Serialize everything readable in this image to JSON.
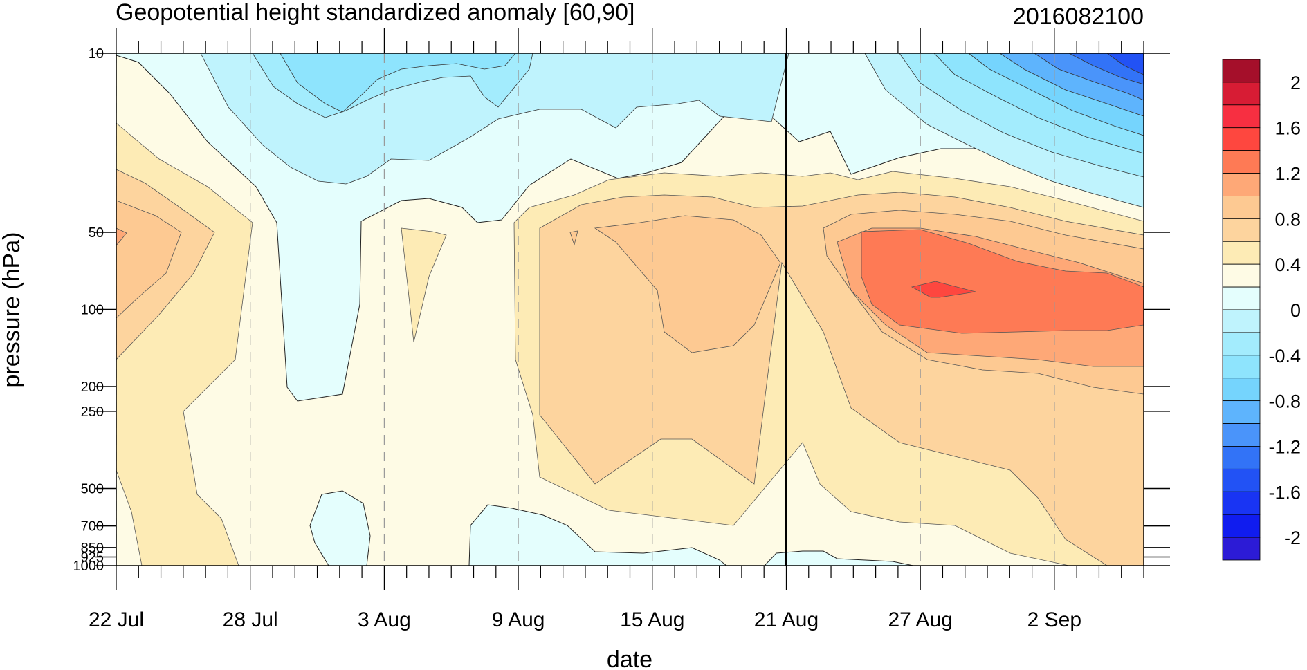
{
  "chart_data": {
    "type": "heatmap",
    "title": "Geopotential height standardized anomaly [60,90]",
    "subtitle": "2016082100",
    "xlabel": "date",
    "ylabel": "pressure (hPa)",
    "x_ticks": [
      "22 Jul",
      "28 Jul",
      "3 Aug",
      "9 Aug",
      "15 Aug",
      "21 Aug",
      "27 Aug",
      "2 Sep"
    ],
    "x_tick_dates": [
      "2016-07-22",
      "2016-07-28",
      "2016-08-03",
      "2016-08-09",
      "2016-08-15",
      "2016-08-21",
      "2016-08-27",
      "2016-09-02"
    ],
    "x_range": [
      "2016-07-22",
      "2016-09-06"
    ],
    "y_scale": "log",
    "y_range": [
      1000,
      10
    ],
    "y_levels": [
      10,
      50,
      100,
      200,
      250,
      500,
      700,
      850,
      925,
      1000
    ],
    "y_tick_labels": [
      "10",
      "50",
      "100",
      "200",
      "250",
      "500",
      "700",
      "850",
      "925",
      "1000"
    ],
    "reference_line_date": "2016-08-21",
    "grid": "dashed vertical at x ticks",
    "colorbar": {
      "labels": [
        "2",
        "1.6",
        "1.2",
        "0.8",
        "0.4",
        "0",
        "-0.4",
        "-0.8",
        "-1.2",
        "-1.6",
        "-2"
      ],
      "label_values": [
        2,
        1.6,
        1.2,
        0.8,
        0.4,
        0,
        -0.4,
        -0.8,
        -1.2,
        -1.6,
        -2
      ],
      "levels": [
        2.2,
        2.0,
        1.8,
        1.6,
        1.4,
        1.2,
        1.0,
        0.8,
        0.6,
        0.4,
        0.2,
        0.0,
        -0.2,
        -0.4,
        -0.6,
        -0.8,
        -1.0,
        -1.2,
        -1.4,
        -1.6,
        -1.8,
        -2.0,
        -2.2
      ],
      "colors": [
        "#a50f2a",
        "#d71c34",
        "#f72f41",
        "#fe473f",
        "#fe7a55",
        "#fea877",
        "#fdc992",
        "#fdd49e",
        "#fdebb5",
        "#fefbe5",
        "#e4fefd",
        "#bff3fd",
        "#a3ecfd",
        "#8ee4fd",
        "#75d4fd",
        "#5eb4fd",
        "#4a94fa",
        "#3273f7",
        "#2252f5",
        "#1934f3",
        "#101cef",
        "#2c1bd6"
      ]
    }
  }
}
